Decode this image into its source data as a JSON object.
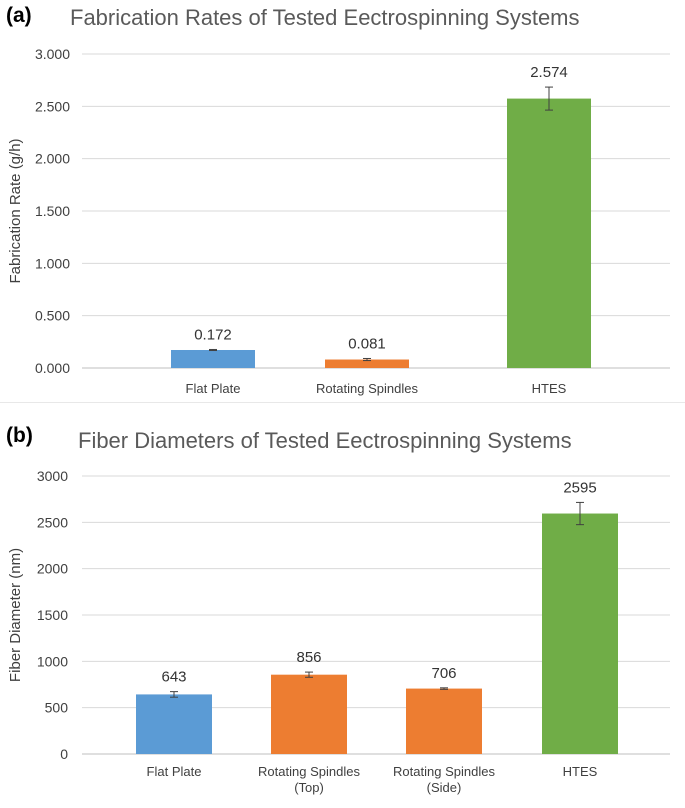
{
  "panels": [
    {
      "label": "(a)",
      "title": "Fabrication Rates of Tested Eectrospinning Systems"
    },
    {
      "label": "(b)",
      "title": "Fiber Diameters of Tested Eectrospinning Systems"
    }
  ],
  "colors": {
    "blue": "#5b9bd5",
    "orange": "#ed7d31",
    "green": "#70ad47",
    "grid": "#d9d9d9",
    "axis": "#bfbfbf"
  },
  "chart_data": [
    {
      "type": "bar",
      "title": "Fabrication Rates of Tested Eectrospinning Systems",
      "ylabel": "Fabrication Rate (g/h)",
      "xlabel": "",
      "ylim": [
        0,
        3
      ],
      "yticks": [
        "0.000",
        "0.500",
        "1.000",
        "1.500",
        "2.000",
        "2.500",
        "3.000"
      ],
      "ytick_values": [
        0,
        0.5,
        1,
        1.5,
        2,
        2.5,
        3
      ],
      "grid": true,
      "categories": [
        [
          "Flat Plate"
        ],
        [
          "Rotating Spindles"
        ],
        [
          "HTES"
        ]
      ],
      "values": [
        0.172,
        0.081,
        2.574
      ],
      "data_labels": [
        "0.172",
        "0.081",
        "2.574"
      ],
      "errors": [
        0.005,
        0.01,
        0.11
      ],
      "bar_colors": [
        "#5b9bd5",
        "#ed7d31",
        "#70ad47"
      ]
    },
    {
      "type": "bar",
      "title": "Fiber Diameters of Tested Eectrospinning Systems",
      "ylabel": "Fiber Diameter (nm)",
      "xlabel": "",
      "ylim": [
        0,
        3000
      ],
      "yticks": [
        "0",
        "500",
        "1000",
        "1500",
        "2000",
        "2500",
        "3000"
      ],
      "ytick_values": [
        0,
        500,
        1000,
        1500,
        2000,
        2500,
        3000
      ],
      "grid": true,
      "categories": [
        [
          "Flat Plate"
        ],
        [
          "Rotating Spindles",
          "(Top)"
        ],
        [
          "Rotating Spindles",
          "(Side)"
        ],
        [
          "HTES"
        ]
      ],
      "values": [
        643,
        856,
        706,
        2595
      ],
      "data_labels": [
        "643",
        "856",
        "706",
        "2595"
      ],
      "errors": [
        30,
        28,
        8,
        120
      ],
      "bar_colors": [
        "#5b9bd5",
        "#ed7d31",
        "#ed7d31",
        "#70ad47"
      ]
    }
  ]
}
